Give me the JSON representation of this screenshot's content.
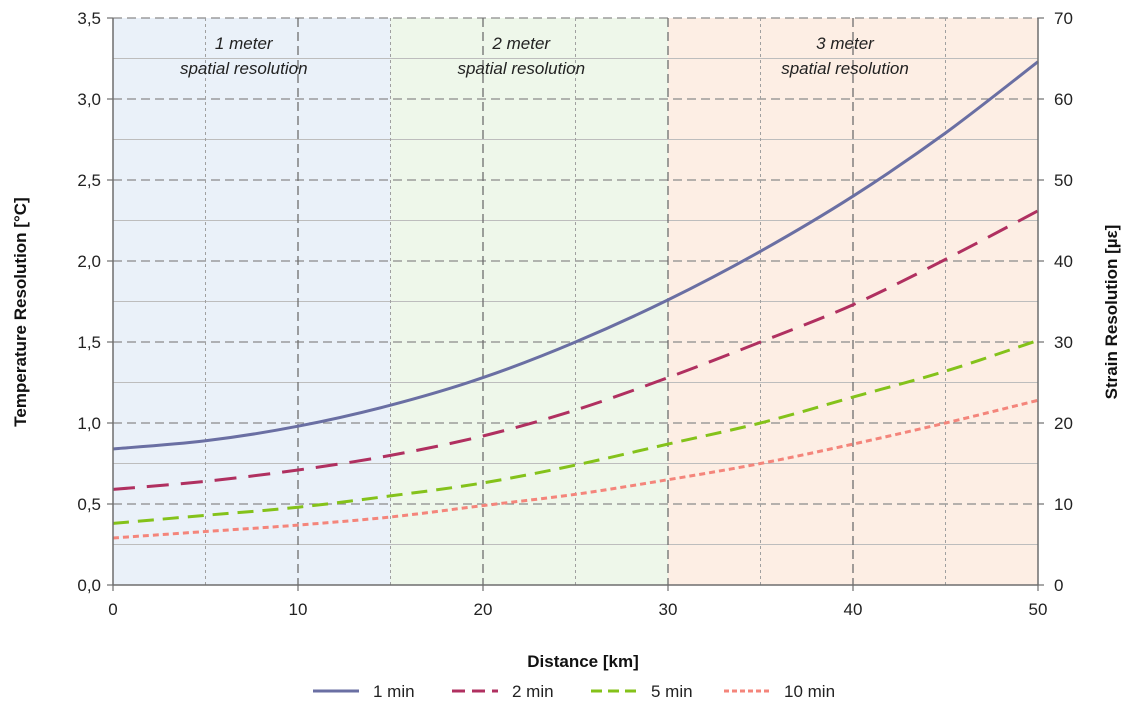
{
  "chart_data": {
    "type": "line",
    "title": "",
    "xlabel": "Distance [km]",
    "ylabel": "Temperature Resolution [°C]",
    "y2label": "Strain Resolution [µε]",
    "xlim": [
      0,
      50
    ],
    "ylim": [
      0,
      3.5
    ],
    "y2lim": [
      0,
      70
    ],
    "x_ticks": [
      "0",
      "10",
      "20",
      "30",
      "40",
      "50"
    ],
    "x_tick_values": [
      0,
      10,
      20,
      30,
      40,
      50
    ],
    "y_ticks": [
      "0,0",
      "0,5",
      "1,0",
      "1,5",
      "2,0",
      "2,5",
      "3,0",
      "3,5"
    ],
    "y_tick_values": [
      0,
      0.5,
      1.0,
      1.5,
      2.0,
      2.5,
      3.0,
      3.5
    ],
    "y2_ticks": [
      "0",
      "10",
      "20",
      "30",
      "40",
      "50",
      "60",
      "70"
    ],
    "y2_tick_values": [
      0,
      10,
      20,
      30,
      40,
      50,
      60,
      70
    ],
    "grid": true,
    "legend_position": "bottom",
    "regions": [
      {
        "x_start": 0,
        "x_end": 15,
        "line1": "1 meter",
        "line2": "spatial resolution",
        "color": "#eaf1f9"
      },
      {
        "x_start": 15,
        "x_end": 30,
        "line1": "2 meter",
        "line2": "spatial resolution",
        "color": "#eef7ea"
      },
      {
        "x_start": 30,
        "x_end": 50,
        "line1": "3 meter",
        "line2": "spatial resolution",
        "color": "#fdeee4"
      }
    ],
    "x": [
      0,
      5,
      10,
      15,
      20,
      25,
      30,
      35,
      40,
      45,
      50
    ],
    "series": [
      {
        "name": "1 min",
        "color": "#6a6fa3",
        "dash": "solid",
        "values": [
          0.84,
          0.89,
          0.98,
          1.11,
          1.28,
          1.5,
          1.76,
          2.06,
          2.4,
          2.79,
          3.23
        ]
      },
      {
        "name": "2 min",
        "color": "#b03060",
        "dash": "long",
        "values": [
          0.59,
          0.64,
          0.71,
          0.8,
          0.92,
          1.08,
          1.28,
          1.5,
          1.73,
          2.01,
          2.31
        ]
      },
      {
        "name": "5 min",
        "color": "#84c21a",
        "dash": "medium",
        "values": [
          0.38,
          0.43,
          0.48,
          0.55,
          0.63,
          0.74,
          0.87,
          1.0,
          1.16,
          1.32,
          1.51
        ]
      },
      {
        "name": "10 min",
        "color": "#f4857b",
        "dash": "short",
        "values": [
          0.29,
          0.33,
          0.37,
          0.42,
          0.49,
          0.56,
          0.65,
          0.75,
          0.87,
          1.0,
          1.14
        ]
      }
    ]
  }
}
